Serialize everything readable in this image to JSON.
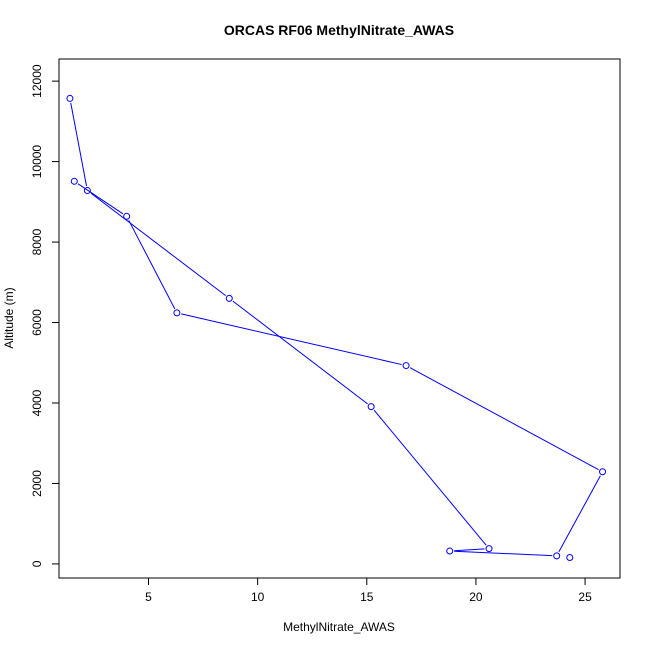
{
  "chart_data": {
    "type": "line",
    "title": "ORCAS RF06 MethylNitrate_AWAS",
    "xlabel": "MethylNitrate_AWAS",
    "ylabel": "Altitude (m)",
    "xlim": [
      0.9,
      26.6
    ],
    "ylim": [
      -350,
      12550
    ],
    "x_ticks": [
      5,
      10,
      15,
      20,
      25
    ],
    "y_ticks": [
      0,
      2000,
      4000,
      6000,
      8000,
      10000,
      12000
    ],
    "grid": false,
    "line_color": "#0000ff",
    "marker": "open-circle",
    "series": [
      {
        "points": [
          {
            "x": 1.4,
            "y": 11570
          },
          {
            "x": 2.2,
            "y": 9280
          },
          {
            "x": 8.7,
            "y": 6600
          },
          {
            "x": 15.2,
            "y": 3910
          },
          {
            "x": 20.6,
            "y": 380
          },
          {
            "x": 18.8,
            "y": 320
          },
          {
            "x": 23.7,
            "y": 200
          },
          {
            "x": 25.8,
            "y": 2290
          },
          {
            "x": 16.8,
            "y": 4930
          },
          {
            "x": 6.3,
            "y": 6240
          },
          {
            "x": 4.0,
            "y": 8640
          },
          {
            "x": 1.6,
            "y": 9510
          }
        ]
      },
      {
        "points": [
          {
            "x": 24.3,
            "y": 160
          }
        ]
      }
    ]
  }
}
